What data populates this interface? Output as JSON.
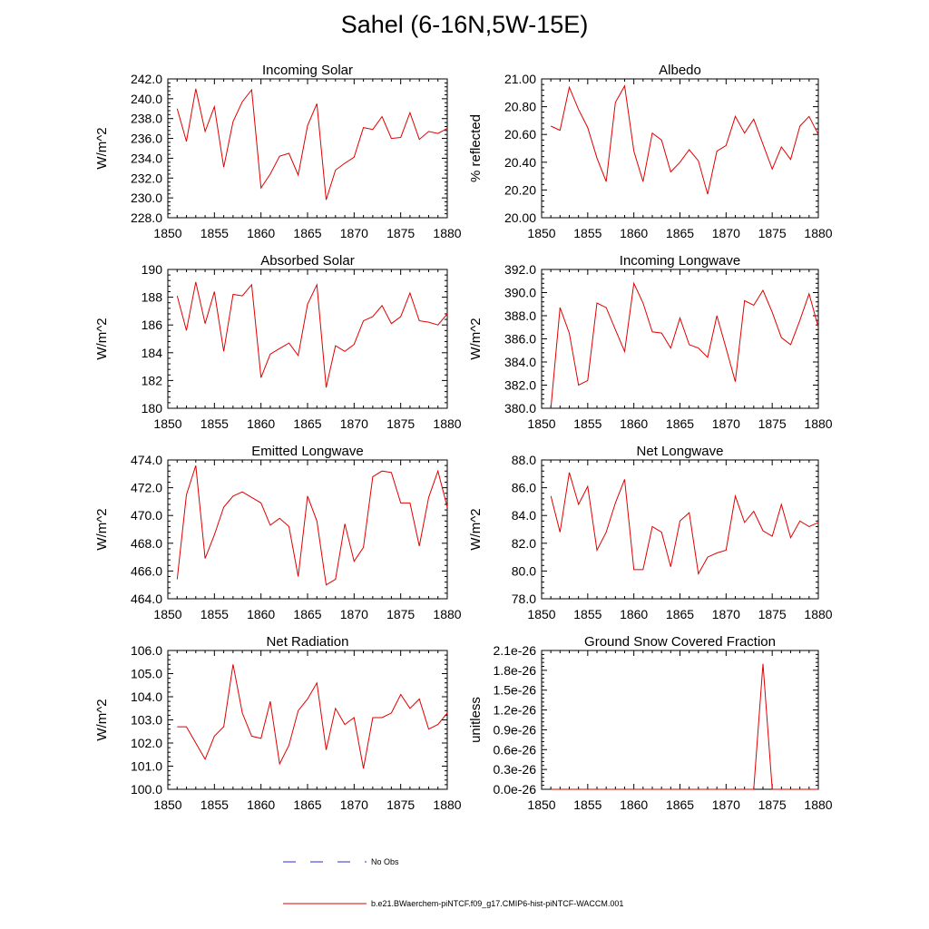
{
  "figure": {
    "title": "Sahel (6-16N,5W-15E)"
  },
  "legend": {
    "items": [
      {
        "label": "No Obs",
        "color": "#2b2bd6",
        "dash": "dashed"
      },
      {
        "label": "b.e21.BWaerchem-piNTCF.f09_g17.CMIP6-hist-piNTCF-WACCM.001",
        "color": "#e00000",
        "dash": "solid"
      }
    ]
  },
  "chart_data": [
    {
      "type": "line",
      "title": "Incoming Solar",
      "ylabel": "W/m^2",
      "xlim": [
        1850,
        1880
      ],
      "ylim": [
        228,
        242
      ],
      "x_ticks": [
        1850,
        1855,
        1860,
        1865,
        1870,
        1875,
        1880
      ],
      "y_ticks": [
        "228.0",
        "230.0",
        "232.0",
        "234.0",
        "236.0",
        "238.0",
        "240.0",
        "242.0"
      ],
      "y_tick_values": [
        228,
        230,
        232,
        234,
        236,
        238,
        240,
        242
      ],
      "x": [
        1851,
        1852,
        1853,
        1854,
        1855,
        1856,
        1857,
        1858,
        1859,
        1860,
        1861,
        1862,
        1863,
        1864,
        1865,
        1866,
        1867,
        1868,
        1869,
        1870,
        1871,
        1872,
        1873,
        1874,
        1875,
        1876,
        1877,
        1878,
        1879,
        1880
      ],
      "series": [
        {
          "color": "#e00000",
          "values": [
            239.0,
            235.7,
            241.0,
            236.7,
            239.2,
            233.1,
            237.7,
            239.7,
            240.9,
            231.0,
            232.4,
            234.2,
            234.5,
            232.3,
            237.3,
            239.5,
            229.8,
            232.8,
            233.5,
            234.1,
            237.1,
            236.9,
            238.2,
            236.0,
            236.1,
            238.6,
            235.9,
            236.7,
            236.5,
            237.0
          ]
        }
      ]
    },
    {
      "type": "line",
      "title": "Albedo",
      "ylabel": "% reflected",
      "xlim": [
        1850,
        1880
      ],
      "ylim": [
        20.0,
        21.0
      ],
      "x_ticks": [
        1850,
        1855,
        1860,
        1865,
        1870,
        1875,
        1880
      ],
      "y_ticks": [
        "20.00",
        "20.20",
        "20.40",
        "20.60",
        "20.80",
        "21.00"
      ],
      "y_tick_values": [
        20.0,
        20.2,
        20.4,
        20.6,
        20.8,
        21.0
      ],
      "x": [
        1851,
        1852,
        1853,
        1854,
        1855,
        1856,
        1857,
        1858,
        1859,
        1860,
        1861,
        1862,
        1863,
        1864,
        1865,
        1866,
        1867,
        1868,
        1869,
        1870,
        1871,
        1872,
        1873,
        1874,
        1875,
        1876,
        1877,
        1878,
        1879,
        1880
      ],
      "series": [
        {
          "color": "#e00000",
          "values": [
            20.66,
            20.63,
            20.94,
            20.78,
            20.65,
            20.43,
            20.26,
            20.83,
            20.95,
            20.48,
            20.26,
            20.61,
            20.56,
            20.33,
            20.4,
            20.49,
            20.41,
            20.17,
            20.48,
            20.52,
            20.73,
            20.61,
            20.71,
            20.53,
            20.35,
            20.51,
            20.42,
            20.66,
            20.73,
            20.6
          ]
        }
      ]
    },
    {
      "type": "line",
      "title": "Absorbed Solar",
      "ylabel": "W/m^2",
      "xlim": [
        1850,
        1880
      ],
      "ylim": [
        180,
        190
      ],
      "x_ticks": [
        1850,
        1855,
        1860,
        1865,
        1870,
        1875,
        1880
      ],
      "y_ticks": [
        "180",
        "182",
        "184",
        "186",
        "188",
        "190"
      ],
      "y_tick_values": [
        180,
        182,
        184,
        186,
        188,
        190
      ],
      "x": [
        1851,
        1852,
        1853,
        1854,
        1855,
        1856,
        1857,
        1858,
        1859,
        1860,
        1861,
        1862,
        1863,
        1864,
        1865,
        1866,
        1867,
        1868,
        1869,
        1870,
        1871,
        1872,
        1873,
        1874,
        1875,
        1876,
        1877,
        1878,
        1879,
        1880
      ],
      "series": [
        {
          "color": "#e00000",
          "values": [
            188.1,
            185.6,
            189.1,
            186.1,
            188.4,
            184.1,
            188.2,
            188.1,
            188.9,
            182.2,
            183.9,
            184.3,
            184.7,
            183.8,
            187.5,
            188.9,
            181.5,
            184.5,
            184.1,
            184.6,
            186.3,
            186.6,
            187.4,
            186.1,
            186.6,
            188.3,
            186.3,
            186.2,
            186.0,
            186.8
          ]
        }
      ]
    },
    {
      "type": "line",
      "title": "Incoming Longwave",
      "ylabel": "W/m^2",
      "xlim": [
        1850,
        1880
      ],
      "ylim": [
        380,
        392
      ],
      "x_ticks": [
        1850,
        1855,
        1860,
        1865,
        1870,
        1875,
        1880
      ],
      "y_ticks": [
        "380.0",
        "382.0",
        "384.0",
        "386.0",
        "388.0",
        "390.0",
        "392.0"
      ],
      "y_tick_values": [
        380,
        382,
        384,
        386,
        388,
        390,
        392
      ],
      "x": [
        1851,
        1852,
        1853,
        1854,
        1855,
        1856,
        1857,
        1858,
        1859,
        1860,
        1861,
        1862,
        1863,
        1864,
        1865,
        1866,
        1867,
        1868,
        1869,
        1870,
        1871,
        1872,
        1873,
        1874,
        1875,
        1876,
        1877,
        1878,
        1879,
        1880
      ],
      "series": [
        {
          "color": "#e00000",
          "values": [
            380.0,
            388.7,
            386.5,
            382.0,
            382.4,
            389.1,
            388.7,
            386.8,
            384.9,
            390.8,
            389.1,
            386.6,
            386.5,
            385.2,
            387.8,
            385.5,
            385.2,
            384.4,
            388.0,
            385.2,
            382.3,
            389.3,
            388.9,
            390.2,
            388.3,
            386.1,
            385.5,
            387.6,
            389.9,
            387.0
          ]
        }
      ]
    },
    {
      "type": "line",
      "title": "Emitted Longwave",
      "ylabel": "W/m^2",
      "xlim": [
        1850,
        1880
      ],
      "ylim": [
        464,
        474
      ],
      "x_ticks": [
        1850,
        1855,
        1860,
        1865,
        1870,
        1875,
        1880
      ],
      "y_ticks": [
        "464.0",
        "466.0",
        "468.0",
        "470.0",
        "472.0",
        "474.0"
      ],
      "y_tick_values": [
        464,
        466,
        468,
        470,
        472,
        474
      ],
      "x": [
        1851,
        1852,
        1853,
        1854,
        1855,
        1856,
        1857,
        1858,
        1859,
        1860,
        1861,
        1862,
        1863,
        1864,
        1865,
        1866,
        1867,
        1868,
        1869,
        1870,
        1871,
        1872,
        1873,
        1874,
        1875,
        1876,
        1877,
        1878,
        1879,
        1880
      ],
      "series": [
        {
          "color": "#e00000",
          "values": [
            465.4,
            471.5,
            473.6,
            466.9,
            468.6,
            470.6,
            471.4,
            471.7,
            471.3,
            470.9,
            469.3,
            469.8,
            469.2,
            465.6,
            471.4,
            469.6,
            465.0,
            465.4,
            469.4,
            466.7,
            467.7,
            472.8,
            473.2,
            473.1,
            470.9,
            470.9,
            467.8,
            471.3,
            473.2,
            470.6
          ]
        }
      ]
    },
    {
      "type": "line",
      "title": "Net Longwave",
      "ylabel": "W/m^2",
      "xlim": [
        1850,
        1880
      ],
      "ylim": [
        78,
        88
      ],
      "x_ticks": [
        1850,
        1855,
        1860,
        1865,
        1870,
        1875,
        1880
      ],
      "y_ticks": [
        "78.0",
        "80.0",
        "82.0",
        "84.0",
        "86.0",
        "88.0"
      ],
      "y_tick_values": [
        78,
        80,
        82,
        84,
        86,
        88
      ],
      "x": [
        1851,
        1852,
        1853,
        1854,
        1855,
        1856,
        1857,
        1858,
        1859,
        1860,
        1861,
        1862,
        1863,
        1864,
        1865,
        1866,
        1867,
        1868,
        1869,
        1870,
        1871,
        1872,
        1873,
        1874,
        1875,
        1876,
        1877,
        1878,
        1879,
        1880
      ],
      "series": [
        {
          "color": "#e00000",
          "values": [
            85.4,
            82.8,
            87.1,
            84.8,
            86.1,
            81.5,
            82.8,
            84.9,
            86.6,
            80.1,
            80.1,
            83.2,
            82.8,
            80.3,
            83.6,
            84.2,
            79.8,
            81.0,
            81.3,
            81.5,
            85.4,
            83.5,
            84.3,
            82.9,
            82.5,
            84.8,
            82.4,
            83.6,
            83.2,
            83.5
          ]
        }
      ]
    },
    {
      "type": "line",
      "title": "Net Radiation",
      "ylabel": "W/m^2",
      "xlim": [
        1850,
        1880
      ],
      "ylim": [
        100,
        106
      ],
      "x_ticks": [
        1850,
        1855,
        1860,
        1865,
        1870,
        1875,
        1880
      ],
      "y_ticks": [
        "100.0",
        "101.0",
        "102.0",
        "103.0",
        "104.0",
        "105.0",
        "106.0"
      ],
      "y_tick_values": [
        100,
        101,
        102,
        103,
        104,
        105,
        106
      ],
      "x": [
        1851,
        1852,
        1853,
        1854,
        1855,
        1856,
        1857,
        1858,
        1859,
        1860,
        1861,
        1862,
        1863,
        1864,
        1865,
        1866,
        1867,
        1868,
        1869,
        1870,
        1871,
        1872,
        1873,
        1874,
        1875,
        1876,
        1877,
        1878,
        1879,
        1880
      ],
      "series": [
        {
          "color": "#e00000",
          "values": [
            102.7,
            102.7,
            102.0,
            101.3,
            102.3,
            102.7,
            105.4,
            103.3,
            102.3,
            102.2,
            103.8,
            101.1,
            101.9,
            103.4,
            103.9,
            104.6,
            101.7,
            103.5,
            102.8,
            103.1,
            100.9,
            103.1,
            103.1,
            103.3,
            104.1,
            103.5,
            103.9,
            102.6,
            102.8,
            103.3
          ]
        }
      ]
    },
    {
      "type": "line",
      "title": "Ground Snow Covered Fraction",
      "ylabel": "unitless",
      "xlim": [
        1850,
        1880
      ],
      "ylim": [
        0,
        2.1e-26
      ],
      "x_ticks": [
        1850,
        1855,
        1860,
        1865,
        1870,
        1875,
        1880
      ],
      "y_ticks": [
        "0.0e-26",
        "0.3e-26",
        "0.6e-26",
        "0.9e-26",
        "1.2e-26",
        "1.5e-26",
        "1.8e-26",
        "2.1e-26"
      ],
      "y_tick_values": [
        0,
        3e-27,
        6e-27,
        9e-27,
        1.2e-26,
        1.5e-26,
        1.8e-26,
        2.1e-26
      ],
      "x": [
        1851,
        1852,
        1853,
        1854,
        1855,
        1856,
        1857,
        1858,
        1859,
        1860,
        1861,
        1862,
        1863,
        1864,
        1865,
        1866,
        1867,
        1868,
        1869,
        1870,
        1871,
        1872,
        1873,
        1874,
        1875,
        1876,
        1877,
        1878,
        1879,
        1880
      ],
      "series": [
        {
          "color": "#e00000",
          "values": [
            0,
            0,
            0,
            0,
            0,
            0,
            0,
            0,
            0,
            0,
            0,
            0,
            0,
            0,
            0,
            0,
            0,
            0,
            0,
            0,
            0,
            0,
            0,
            1.9e-26,
            0,
            0,
            0,
            0,
            0,
            0
          ]
        }
      ]
    }
  ]
}
